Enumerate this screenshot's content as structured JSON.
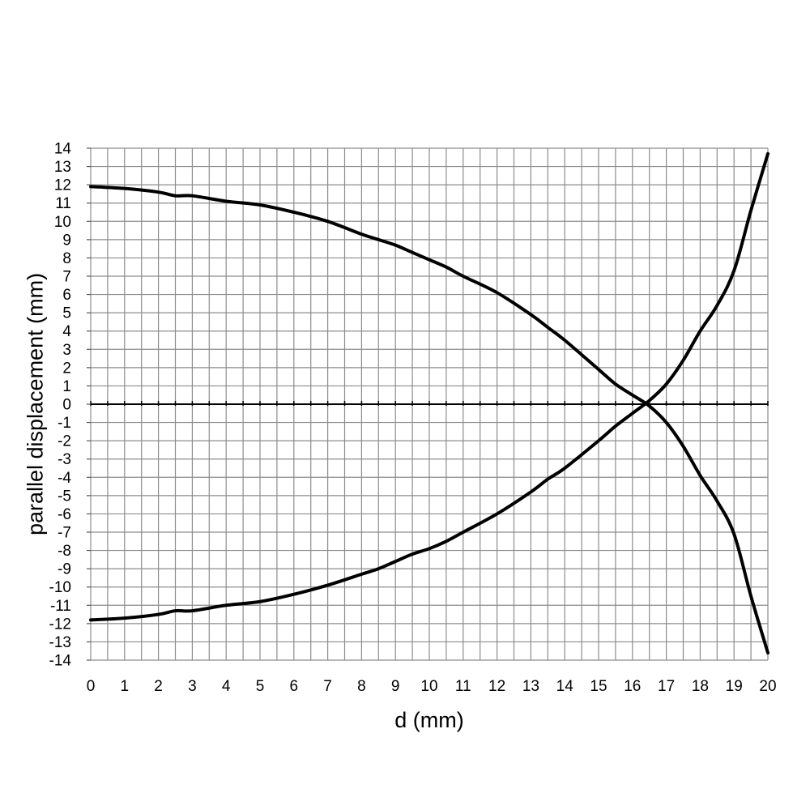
{
  "chart_data": {
    "type": "line",
    "title": "",
    "xlabel": "d (mm)",
    "ylabel": "parallel displacement (mm)",
    "xlim": [
      0,
      20
    ],
    "ylim": [
      -14,
      14
    ],
    "x_ticks": [
      "0",
      "1",
      "2",
      "3",
      "4",
      "5",
      "6",
      "7",
      "8",
      "9",
      "10",
      "11",
      "12",
      "13",
      "14",
      "15",
      "16",
      "17",
      "18",
      "19",
      "20"
    ],
    "y_ticks": [
      "14",
      "13",
      "12",
      "11",
      "10",
      "9",
      "8",
      "7",
      "6",
      "5",
      "4",
      "3",
      "2",
      "1",
      "0",
      "-1",
      "-2",
      "-3",
      "-4",
      "-5",
      "-6",
      "-7",
      "-8",
      "-9",
      "-10",
      "-11",
      "-12",
      "-13",
      "-14"
    ],
    "grid": true,
    "grid_minor_x_step": 0.5,
    "grid_y_step": 1,
    "line_color": "#000000",
    "series": [
      {
        "x": [
          0,
          1,
          2,
          2.5,
          3,
          4,
          5,
          6,
          7,
          8,
          8.5,
          9,
          9.5,
          10,
          10.5,
          11,
          12,
          13,
          13.5,
          14,
          15,
          15.5,
          16,
          16.5,
          17,
          17.5,
          18,
          18.5,
          19,
          19.5,
          20
        ],
        "values": [
          11.9,
          11.8,
          11.6,
          11.4,
          11.4,
          11.1,
          10.9,
          10.5,
          10.0,
          9.3,
          9.0,
          8.7,
          8.3,
          7.9,
          7.5,
          7.0,
          6.1,
          4.9,
          4.2,
          3.5,
          1.9,
          1.1,
          0.5,
          -0.1,
          -1.0,
          -2.3,
          -3.9,
          -5.3,
          -7.1,
          -10.5,
          -13.6
        ]
      },
      {
        "x": [
          0,
          1,
          2,
          2.5,
          3,
          4,
          5,
          6,
          7,
          8,
          8.5,
          9,
          9.5,
          10,
          10.5,
          11,
          12,
          13,
          13.5,
          14,
          15,
          15.5,
          16,
          16.5,
          17,
          17.5,
          18,
          18.5,
          19,
          19.5,
          20
        ],
        "values": [
          -11.8,
          -11.7,
          -11.5,
          -11.3,
          -11.3,
          -11.0,
          -10.8,
          -10.4,
          -9.9,
          -9.3,
          -9.0,
          -8.6,
          -8.2,
          -7.9,
          -7.5,
          -7.0,
          -6.0,
          -4.8,
          -4.1,
          -3.5,
          -2.0,
          -1.2,
          -0.5,
          0.2,
          1.1,
          2.4,
          4.0,
          5.4,
          7.3,
          10.6,
          13.7
        ]
      }
    ]
  }
}
